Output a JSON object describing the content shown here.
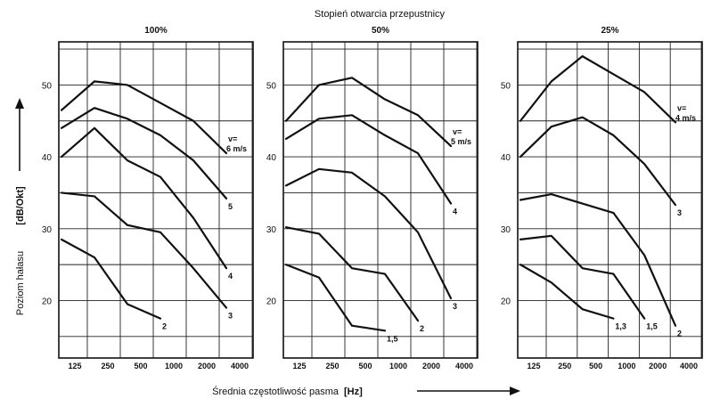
{
  "figure": {
    "title": "Stopień otwarcia przepustnicy",
    "ylabel": "Poziom hałasu",
    "yunit": "[dB/Okt]",
    "xlabel": "Średnia częstotliwość pasma",
    "xunit": "[Hz]"
  },
  "chart_data": [
    {
      "type": "line",
      "title": "100%",
      "x": [
        125,
        250,
        500,
        1000,
        2000,
        4000
      ],
      "xtick_labels": [
        "125",
        "250",
        "500",
        "1000",
        "2000",
        "4000"
      ],
      "x_scale": "log",
      "ylim": [
        12,
        56
      ],
      "yticks": [
        20,
        30,
        40,
        50
      ],
      "grid": true,
      "velocity_prefix": "v=",
      "series": [
        {
          "name": "6 m/s",
          "values": [
            46.5,
            50.5,
            50,
            47.5,
            45,
            40.5
          ]
        },
        {
          "name": "5",
          "values": [
            44,
            46.8,
            45.3,
            43,
            39.5,
            34.2
          ]
        },
        {
          "name": "4",
          "values": [
            40,
            44,
            39.5,
            37.2,
            31.5,
            24.5
          ]
        },
        {
          "name": "3",
          "values": [
            35,
            34.5,
            30.5,
            29.5,
            24.5,
            19
          ]
        },
        {
          "name": "2",
          "values": [
            28.5,
            26,
            19.5,
            17.5,
            null,
            null
          ]
        }
      ]
    },
    {
      "type": "line",
      "title": "50%",
      "x": [
        125,
        250,
        500,
        1000,
        2000,
        4000
      ],
      "xtick_labels": [
        "125",
        "250",
        "500",
        "1000",
        "2000",
        "4000"
      ],
      "x_scale": "log",
      "ylim": [
        12,
        56
      ],
      "yticks": [
        20,
        30,
        40,
        50
      ],
      "grid": true,
      "velocity_prefix": "v=",
      "series": [
        {
          "name": "5 m/s",
          "values": [
            45,
            50,
            51,
            48,
            45.8,
            41.5
          ]
        },
        {
          "name": "4",
          "values": [
            42.5,
            45.3,
            45.8,
            43,
            40.5,
            33.5
          ]
        },
        {
          "name": "3",
          "values": [
            36,
            38.3,
            37.8,
            34.5,
            29.5,
            20.3
          ]
        },
        {
          "name": "2",
          "values": [
            30.2,
            29.3,
            24.5,
            23.7,
            17.2,
            null
          ]
        },
        {
          "name": "1,5",
          "values": [
            25,
            23.2,
            16.5,
            15.8,
            null,
            null
          ]
        }
      ]
    },
    {
      "type": "line",
      "title": "25%",
      "x": [
        125,
        250,
        500,
        1000,
        2000,
        4000
      ],
      "xtick_labels": [
        "125",
        "250",
        "500",
        "1000",
        "2000",
        "4000"
      ],
      "x_scale": "log",
      "ylim": [
        12,
        56
      ],
      "yticks": [
        20,
        30,
        40,
        50
      ],
      "grid": true,
      "velocity_prefix": "v=",
      "series": [
        {
          "name": "4 m/s",
          "values": [
            45,
            50.5,
            54,
            51.5,
            49,
            44.8
          ]
        },
        {
          "name": "3",
          "values": [
            40,
            44.2,
            45.5,
            43,
            39,
            33.3
          ]
        },
        {
          "name": "2",
          "values": [
            34,
            34.8,
            33.5,
            32.2,
            26.3,
            16.5
          ]
        },
        {
          "name": "1,5",
          "values": [
            28.5,
            29,
            24.5,
            23.7,
            17.5,
            null
          ]
        },
        {
          "name": "1,3",
          "values": [
            25,
            22.5,
            18.8,
            17.5,
            null,
            null
          ]
        }
      ]
    }
  ]
}
